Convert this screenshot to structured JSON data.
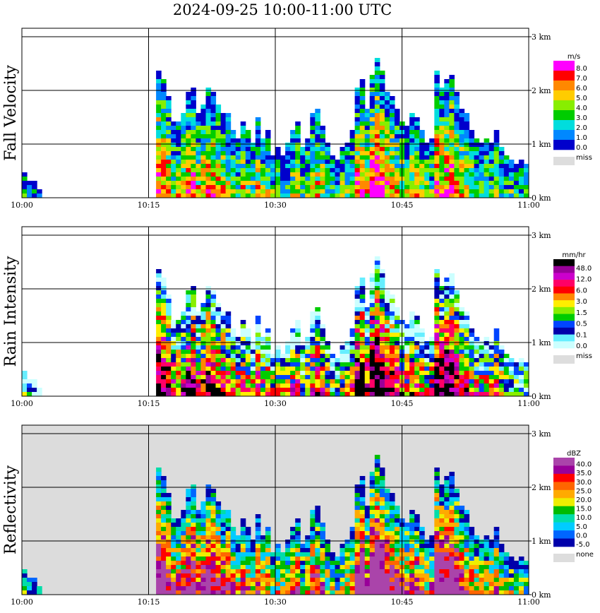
{
  "title": "2024-09-25  10:00-11:00 UTC",
  "chart_data": [
    {
      "type": "heatmap",
      "ylabel": "Fall Velocity",
      "x_ticks": [
        "10:00",
        "10:15",
        "10:30",
        "10:45",
        "11:00"
      ],
      "y_ticks": [
        "0 km",
        "1 km",
        "2 km",
        "3 km"
      ],
      "ylim": [
        0,
        3
      ],
      "xlim": [
        "10:00",
        "11:00"
      ],
      "legend": {
        "unit": "m/s",
        "labels": [
          "8.0",
          "7.0",
          "6.0",
          "5.0",
          "4.0",
          "3.0",
          "2.0",
          "1.0",
          "0.0"
        ],
        "missing_label": "miss",
        "colors": [
          "#ff00ff",
          "#ff0000",
          "#ff8800",
          "#ffcc00",
          "#88ee00",
          "#00cc00",
          "#00dddd",
          "#0088ff",
          "#0000cc",
          "#dddddd"
        ]
      },
      "background": "#ffffff",
      "columns_heights_km": [
        0.45,
        0.3,
        0.35,
        0.2,
        0.0,
        0.0,
        0.0,
        0.0,
        0.0,
        0.0,
        0.0,
        0.0,
        0.0,
        0.0,
        0.0,
        0.0,
        0.0,
        0.0,
        0.0,
        0.0,
        0.0,
        0.0,
        0.0,
        0.0,
        0.0,
        0.0,
        0.0,
        2.25,
        2.1,
        1.85,
        1.4,
        1.35,
        1.5,
        1.9,
        2.0,
        1.5,
        1.7,
        2.0,
        1.9,
        1.7,
        1.55,
        1.5,
        1.25,
        1.1,
        1.4,
        1.2,
        1.0,
        1.45,
        1.1,
        1.2,
        0.8,
        0.9,
        0.8,
        1.0,
        1.2,
        1.35,
        0.9,
        1.1,
        1.5,
        1.6,
        1.3,
        1.0,
        0.8,
        0.7,
        0.9,
        1.0,
        1.2,
        2.0,
        2.1,
        1.6,
        2.2,
        2.5,
        2.3,
        1.9,
        1.8,
        1.6,
        1.4,
        1.3,
        1.5,
        1.45,
        1.2,
        1.0,
        1.1,
        2.3,
        2.0,
        2.1,
        2.2,
        1.9,
        1.6,
        1.5,
        1.2,
        1.1,
        1.0,
        1.1,
        1.0,
        1.2,
        0.9,
        0.8,
        0.7,
        0.6,
        0.7,
        0.6
      ],
      "core_scale": 1.0
    },
    {
      "type": "heatmap",
      "ylabel": "Rain Intensity",
      "x_ticks": [
        "10:00",
        "10:15",
        "10:30",
        "10:45",
        "11:00"
      ],
      "y_ticks": [
        "0 km",
        "1 km",
        "2 km",
        "3 km"
      ],
      "ylim": [
        0,
        3
      ],
      "xlim": [
        "10:00",
        "11:00"
      ],
      "legend": {
        "unit": "mm/hr",
        "labels": [
          "48.0",
          "12.0",
          "6.0",
          "3.0",
          "1.5",
          "0.5",
          "0.1",
          "0.0"
        ],
        "missing_label": "miss",
        "colors": [
          "#000000",
          "#990099",
          "#cc00cc",
          "#ff0066",
          "#ff0000",
          "#ff8800",
          "#ffee00",
          "#88ee00",
          "#00cc00",
          "#0044ff",
          "#0000aa",
          "#66eeff",
          "#ccffff",
          "#dddddd"
        ]
      },
      "background": "#ffffff",
      "columns_heights_km": [
        0.45,
        0.3,
        0.35,
        0.2,
        0.0,
        0.0,
        0.0,
        0.0,
        0.0,
        0.0,
        0.0,
        0.0,
        0.0,
        0.0,
        0.0,
        0.0,
        0.0,
        0.0,
        0.0,
        0.0,
        0.0,
        0.0,
        0.0,
        0.0,
        0.0,
        0.0,
        0.0,
        2.25,
        2.1,
        1.85,
        1.4,
        1.35,
        1.5,
        1.9,
        2.0,
        1.5,
        1.7,
        2.0,
        1.9,
        1.7,
        1.55,
        1.5,
        1.25,
        1.1,
        1.4,
        1.2,
        1.0,
        1.45,
        1.1,
        1.2,
        0.8,
        0.9,
        0.8,
        1.0,
        1.2,
        1.35,
        0.9,
        1.1,
        1.5,
        1.6,
        1.3,
        1.0,
        0.8,
        0.7,
        0.9,
        1.0,
        1.2,
        2.0,
        2.1,
        1.6,
        2.2,
        2.5,
        2.3,
        1.9,
        1.8,
        1.6,
        1.4,
        1.3,
        1.5,
        1.45,
        1.2,
        1.0,
        1.1,
        2.3,
        2.0,
        2.1,
        2.2,
        1.9,
        1.6,
        1.5,
        1.2,
        1.1,
        1.0,
        1.1,
        1.0,
        1.2,
        0.9,
        0.8,
        0.7,
        0.6,
        0.7,
        0.6
      ],
      "core_scale": 1.3
    },
    {
      "type": "heatmap",
      "ylabel": "Reflectivity",
      "x_ticks": [
        "10:00",
        "10:15",
        "10:30",
        "10:45",
        "11:00"
      ],
      "y_ticks": [
        "0 km",
        "1 km",
        "2 km",
        "3 km"
      ],
      "ylim": [
        0,
        3
      ],
      "xlim": [
        "10:00",
        "11:00"
      ],
      "legend": {
        "unit": "dBZ",
        "labels": [
          "40.0",
          "35.0",
          "30.0",
          "25.0",
          "20.0",
          "15.0",
          "10.0",
          "5.0",
          "0.0",
          "-5.0"
        ],
        "missing_label": "none",
        "colors": [
          "#aa44aa",
          "#990099",
          "#ff0000",
          "#ff6600",
          "#ffaa00",
          "#eeee00",
          "#00bb00",
          "#00ddaa",
          "#00ccff",
          "#0066ff",
          "#0000aa",
          "#dddddd"
        ]
      },
      "background": "#dcdcdc",
      "columns_heights_km": [
        0.45,
        0.3,
        0.35,
        0.2,
        0.0,
        0.0,
        0.0,
        0.0,
        0.0,
        0.0,
        0.0,
        0.0,
        0.0,
        0.0,
        0.0,
        0.0,
        0.0,
        0.0,
        0.0,
        0.0,
        0.0,
        0.0,
        0.0,
        0.0,
        0.0,
        0.0,
        0.0,
        2.25,
        2.1,
        1.85,
        1.4,
        1.35,
        1.5,
        1.9,
        2.0,
        1.5,
        1.7,
        2.0,
        1.9,
        1.7,
        1.55,
        1.5,
        1.25,
        1.1,
        1.4,
        1.2,
        1.0,
        1.45,
        1.1,
        1.2,
        0.8,
        0.9,
        0.8,
        1.0,
        1.2,
        1.35,
        0.9,
        1.1,
        1.5,
        1.6,
        1.3,
        1.0,
        0.8,
        0.7,
        0.9,
        1.0,
        1.2,
        2.0,
        2.1,
        1.6,
        2.2,
        2.5,
        2.3,
        1.9,
        1.8,
        1.6,
        1.4,
        1.3,
        1.5,
        1.45,
        1.2,
        1.0,
        1.1,
        2.3,
        2.0,
        2.1,
        2.2,
        1.9,
        1.6,
        1.5,
        1.2,
        1.1,
        1.0,
        1.1,
        1.0,
        1.2,
        0.9,
        0.8,
        0.7,
        0.6,
        0.7,
        0.6
      ],
      "core_scale": 1.5
    }
  ]
}
